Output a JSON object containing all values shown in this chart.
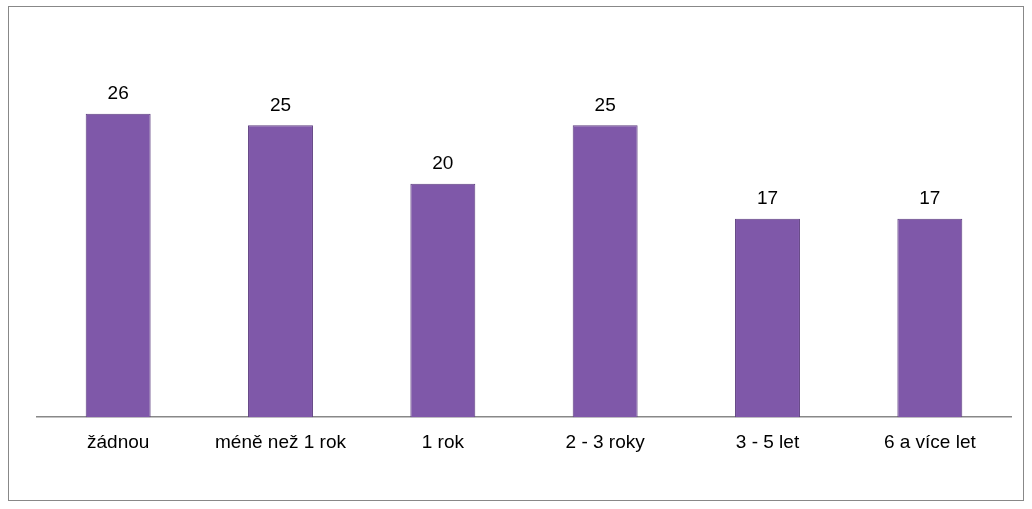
{
  "chart_data": {
    "type": "bar",
    "categories": [
      "žádnou",
      "méně než 1 rok",
      "1 rok",
      "2 - 3 roky",
      "3 - 5 let",
      "6 a více let"
    ],
    "values": [
      26,
      25,
      20,
      25,
      17,
      17
    ],
    "color": "#7f58a9",
    "data_labels": true,
    "grid": false,
    "legend": false
  }
}
